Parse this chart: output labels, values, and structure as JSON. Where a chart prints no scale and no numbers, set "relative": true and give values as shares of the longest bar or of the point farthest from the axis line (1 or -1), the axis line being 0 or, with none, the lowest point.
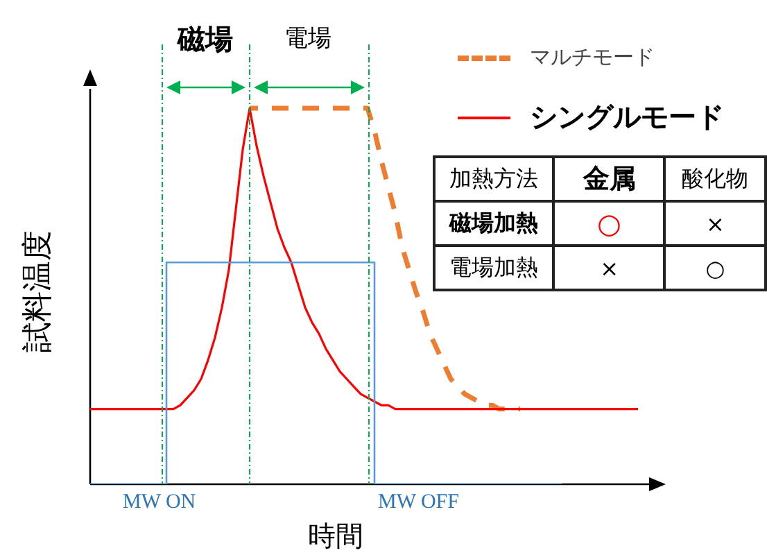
{
  "chart_data": [
    {
      "type": "line",
      "relative": true,
      "xlabel": "時間",
      "ylabel": "試料温度",
      "legend": "top right",
      "annotations": [
        "磁場",
        "電場",
        "MW ON",
        "MW OFF"
      ],
      "categories": [
        null,
        null,
        null,
        null,
        null,
        null,
        null,
        null,
        null,
        null,
        null,
        null,
        null,
        null,
        null,
        null,
        null,
        null,
        null,
        null,
        null,
        null,
        null,
        null,
        null,
        null,
        null,
        null,
        null,
        null,
        null,
        null,
        null,
        null,
        null,
        null,
        null,
        null,
        null,
        null,
        null,
        null,
        null,
        null,
        null,
        null,
        null,
        null,
        null,
        null,
        null,
        null,
        null,
        null,
        null,
        null,
        null,
        null,
        null,
        null,
        null,
        null,
        null,
        null,
        null,
        null,
        null,
        null,
        null,
        null,
        null,
        null,
        null,
        null,
        null,
        null,
        null,
        null,
        null,
        null,
        null,
        null,
        null,
        null
      ],
      "series": [
        {
          "name": "マルチモード",
          "color": "#ed7d31",
          "line_style": "dashed",
          "values": [
            null,
            null,
            null,
            null,
            null,
            null,
            null,
            null,
            null,
            null,
            null,
            null,
            null,
            null,
            null,
            null,
            null,
            null,
            null,
            null,
            null,
            null,
            null,
            1,
            1,
            1,
            1,
            1,
            1,
            1,
            1,
            1,
            1,
            1,
            1,
            1,
            1,
            1,
            1,
            1,
            1,
            0.94,
            0.86,
            0.79,
            0.72,
            0.63,
            0.57,
            0.51,
            0.46,
            0.4,
            0.36,
            0.32,
            0.28,
            0.26,
            0.24,
            0.23,
            0.22,
            0.21,
            0.21,
            0.2,
            0.2,
            0.2,
            0.2,
            null,
            null,
            null,
            null,
            null,
            null,
            null,
            null,
            null,
            null,
            null,
            null,
            null,
            null,
            null,
            null,
            null,
            null,
            null,
            null,
            null
          ]
        },
        {
          "name": "シングルモード",
          "color": "#ff0000",
          "values": [
            0.2,
            0.2,
            0.2,
            0.2,
            0.2,
            0.2,
            0.2,
            0.2,
            0.2,
            0.2,
            0.2,
            0.2,
            0.2,
            0.21,
            0.23,
            0.25,
            0.28,
            0.33,
            0.39,
            0.47,
            0.57,
            0.73,
            0.89,
            1,
            0.9,
            0.82,
            0.75,
            0.68,
            0.63,
            0.59,
            0.53,
            0.47,
            0.43,
            0.4,
            0.36,
            0.33,
            0.3,
            0.28,
            0.26,
            0.24,
            0.23,
            0.22,
            0.21,
            0.21,
            0.2,
            0.2,
            0.2,
            0.2,
            0.2,
            0.2,
            0.2,
            0.2,
            0.2,
            0.2,
            0.2,
            0.2,
            0.2,
            0.2,
            0.2,
            0.2,
            0.2,
            0.2,
            0.2,
            0.2,
            0.2,
            0.2,
            0.2,
            0.2,
            0.2,
            0.2,
            0.2,
            0.2,
            0.2,
            0.2,
            0.2,
            0.2,
            0.2,
            0.2,
            0.2,
            0.2,
            null,
            null,
            null,
            null
          ]
        },
        {
          "type": "step",
          "color": "#5b9bd5",
          "values": [
            0,
            0,
            0,
            0,
            0,
            0,
            0,
            0,
            0,
            0,
            0,
            0.59,
            0.59,
            0.59,
            0.59,
            0.59,
            0.59,
            0.59,
            0.59,
            0.59,
            0.59,
            0.59,
            0.59,
            0.59,
            0.59,
            0.59,
            0.59,
            0.59,
            0.59,
            0.59,
            0.59,
            0.59,
            0.59,
            0.59,
            0.59,
            0.59,
            0.59,
            0.59,
            0.59,
            0.59,
            0.59,
            0,
            0,
            0,
            0,
            0,
            0,
            0,
            0,
            0,
            0,
            0,
            0,
            0,
            0,
            0,
            0,
            0,
            0,
            0,
            0,
            0,
            0,
            0,
            0,
            0,
            0,
            0,
            0,
            null,
            null,
            null,
            null,
            null,
            null,
            null,
            null,
            null,
            null,
            null,
            null,
            null,
            null,
            null
          ]
        }
      ]
    },
    {
      "type": "other",
      "title": "加熱方法",
      "categories": [
        "金属",
        "酸化物"
      ],
      "y_categories": [
        "磁場加熱",
        "電場加熱"
      ],
      "cell_labels": [
        [
          "○",
          "×"
        ],
        [
          "×",
          "○"
        ]
      ]
    }
  ]
}
